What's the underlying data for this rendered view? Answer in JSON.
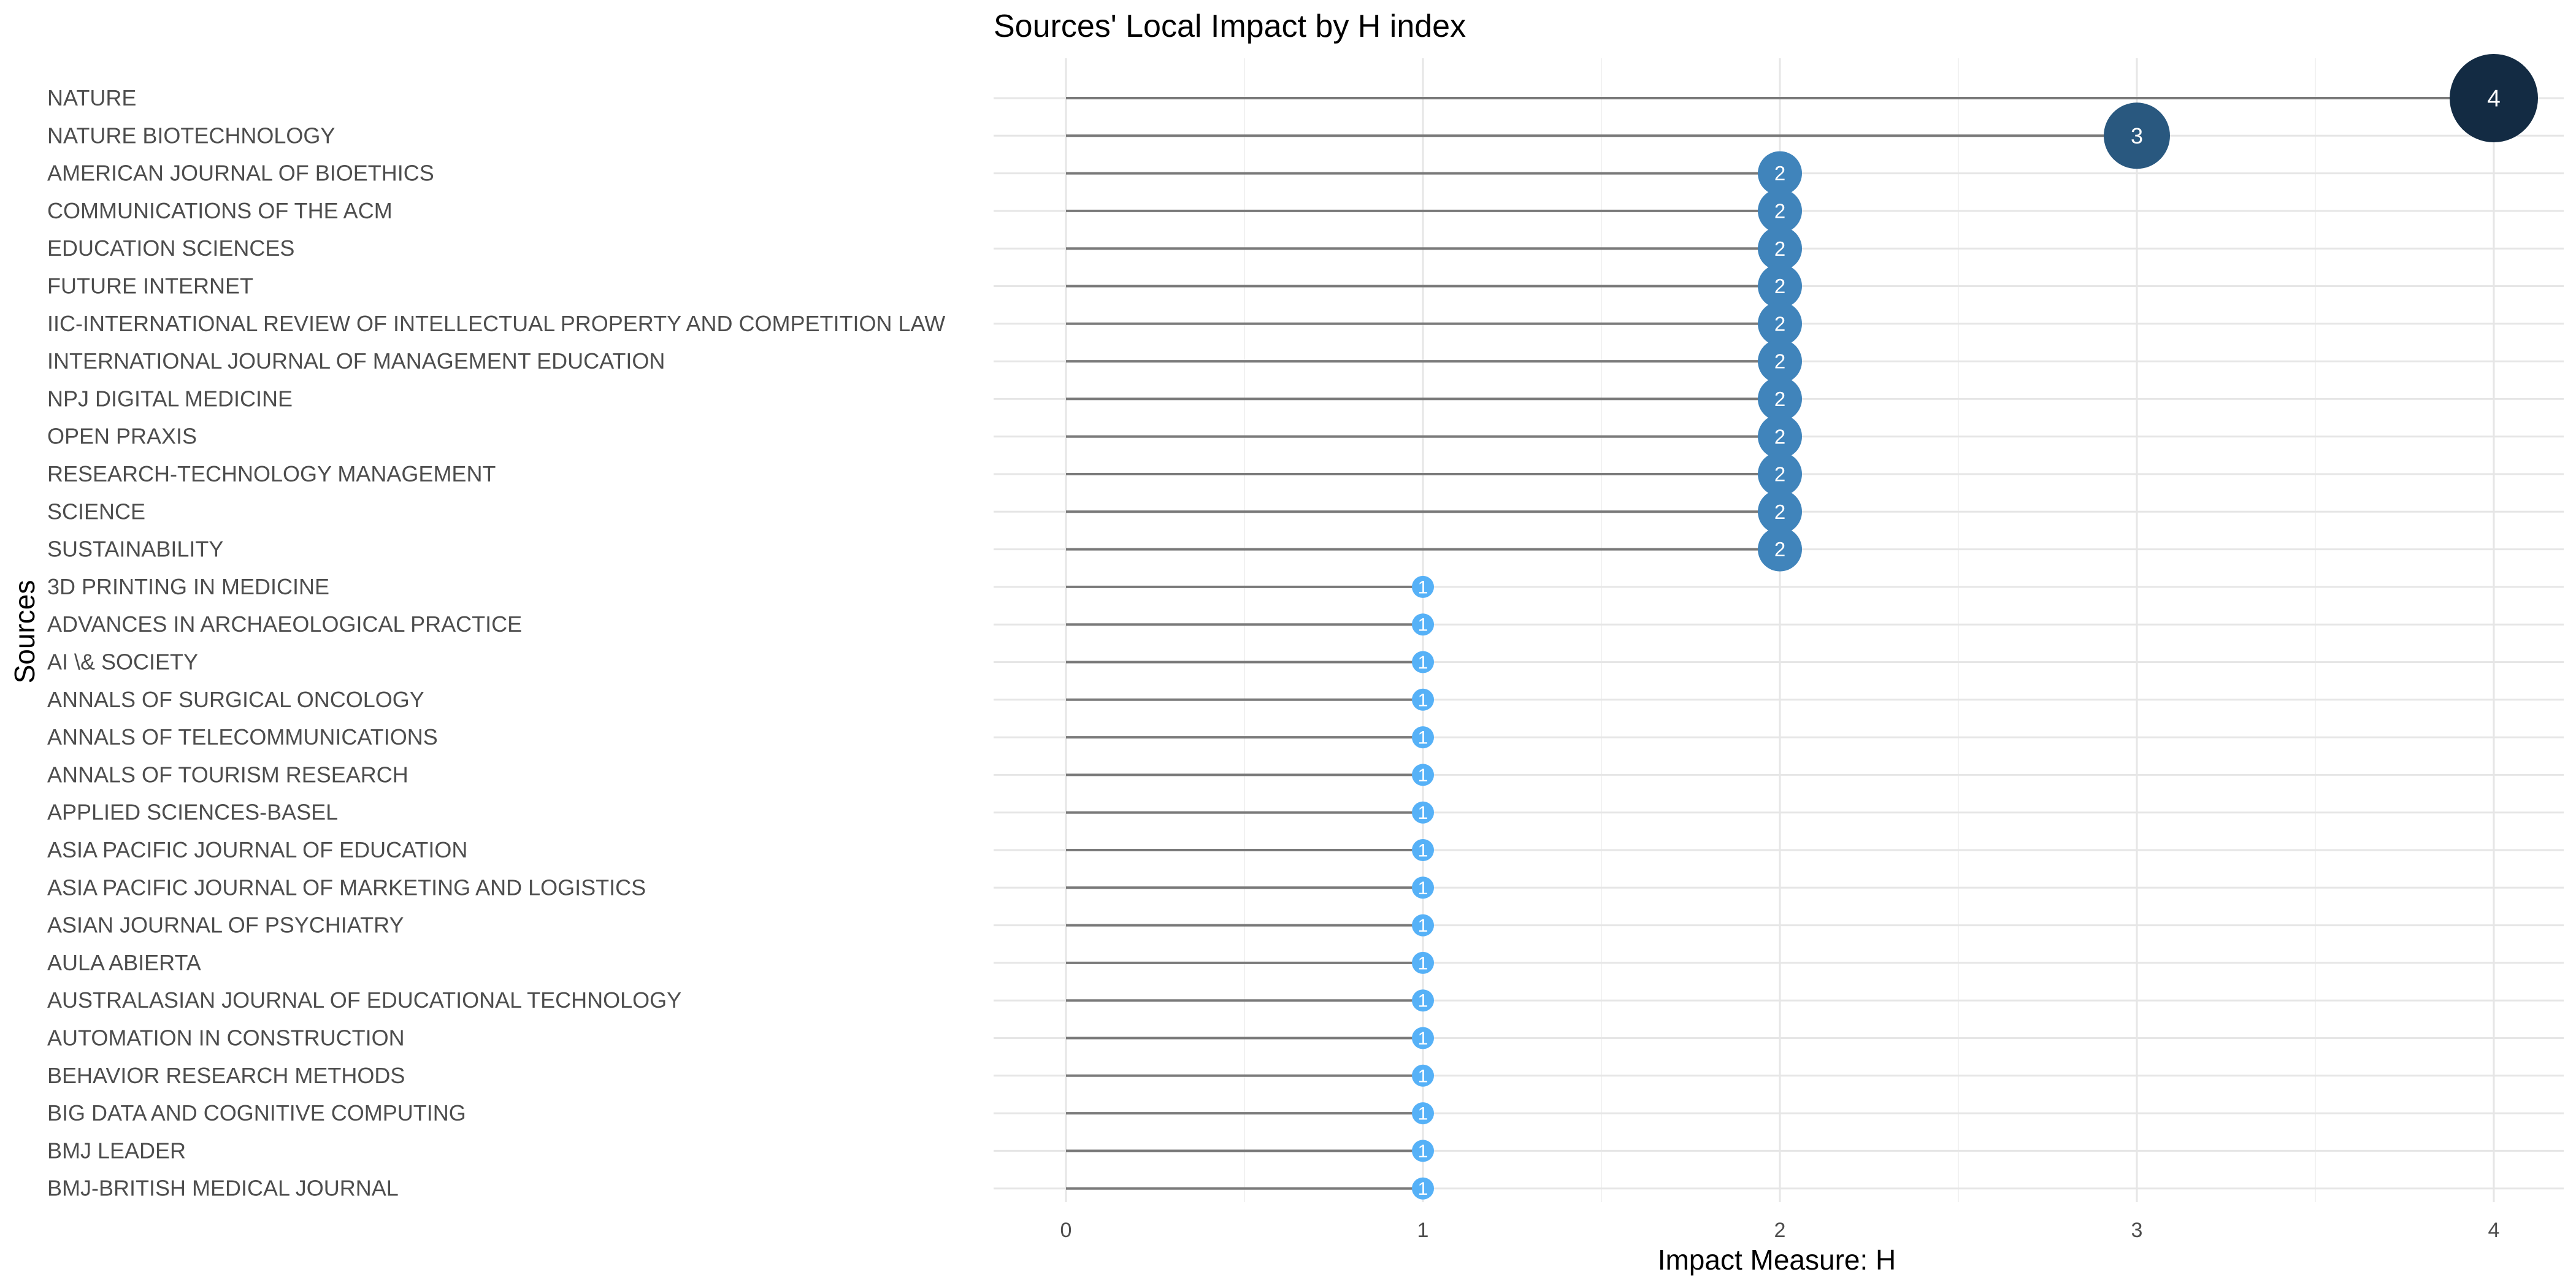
{
  "chart_data": {
    "type": "lollipop",
    "title": "Sources' Local Impact by H index",
    "xlabel": "Impact Measure: H",
    "ylabel": "Sources",
    "xlim": [
      0,
      4.1
    ],
    "x_ticks": [
      "0",
      "1",
      "2",
      "3",
      "4"
    ],
    "grid": true,
    "legend": "none",
    "color_scale": {
      "low": "#56B1F7",
      "high": "#132B43"
    },
    "categories": [
      "NATURE",
      "NATURE BIOTECHNOLOGY",
      "AMERICAN JOURNAL OF BIOETHICS",
      "COMMUNICATIONS OF THE ACM",
      "EDUCATION SCIENCES",
      "FUTURE INTERNET",
      "IIC-INTERNATIONAL REVIEW OF INTELLECTUAL PROPERTY AND COMPETITION LAW",
      "INTERNATIONAL JOURNAL OF MANAGEMENT EDUCATION",
      "NPJ DIGITAL MEDICINE",
      "OPEN PRAXIS",
      "RESEARCH-TECHNOLOGY MANAGEMENT",
      "SCIENCE",
      "SUSTAINABILITY",
      "3D PRINTING IN MEDICINE",
      "ADVANCES IN ARCHAEOLOGICAL PRACTICE",
      "AI \\& SOCIETY",
      "ANNALS OF SURGICAL ONCOLOGY",
      "ANNALS OF TELECOMMUNICATIONS",
      "ANNALS OF TOURISM RESEARCH",
      "APPLIED SCIENCES-BASEL",
      "ASIA PACIFIC JOURNAL OF EDUCATION",
      "ASIA PACIFIC JOURNAL OF MARKETING AND LOGISTICS",
      "ASIAN JOURNAL OF PSYCHIATRY",
      "AULA ABIERTA",
      "AUSTRALASIAN JOURNAL OF EDUCATIONAL TECHNOLOGY",
      "AUTOMATION IN CONSTRUCTION",
      "BEHAVIOR RESEARCH METHODS",
      "BIG DATA AND COGNITIVE COMPUTING",
      "BMJ LEADER",
      "BMJ-BRITISH MEDICAL JOURNAL"
    ],
    "values": [
      4,
      3,
      2,
      2,
      2,
      2,
      2,
      2,
      2,
      2,
      2,
      2,
      2,
      1,
      1,
      1,
      1,
      1,
      1,
      1,
      1,
      1,
      1,
      1,
      1,
      1,
      1,
      1,
      1,
      1
    ]
  }
}
